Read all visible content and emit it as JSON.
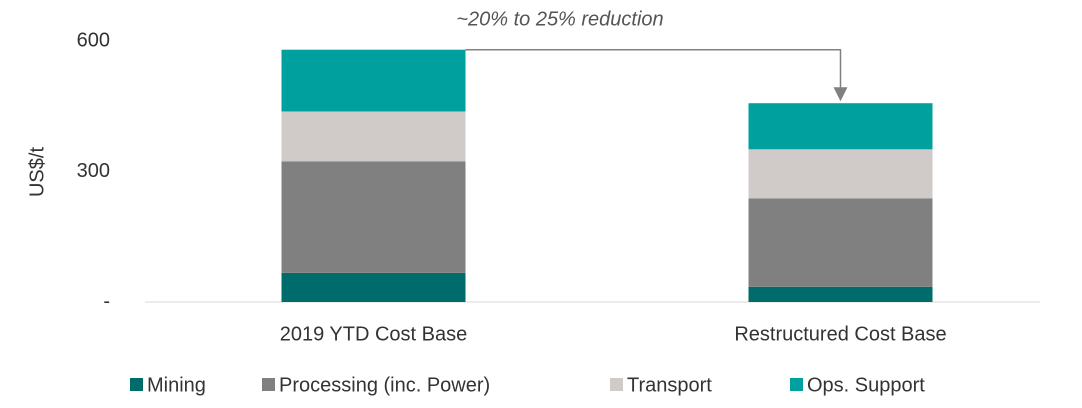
{
  "chart_data": {
    "type": "stacked_bar",
    "annotation": "~20% to 25% reduction",
    "y_label": "US$/t",
    "categories": [
      "2019 YTD Cost Base",
      "Restructured Cost Base"
    ],
    "series": [
      {
        "name": "Mining",
        "color": "#006b6b",
        "values": [
          67,
          35
        ]
      },
      {
        "name": "Processing (inc. Power)",
        "color": "#808080",
        "values": [
          256,
          203
        ]
      },
      {
        "name": "Transport",
        "color": "#d0cbc8",
        "values": [
          115,
          113
        ]
      },
      {
        "name": "Ops. Support",
        "color": "#00a09e",
        "values": [
          142,
          106
        ]
      }
    ],
    "ylim": [
      0,
      600
    ],
    "yticks": [
      {
        "value": 0,
        "label": "-"
      },
      300,
      600
    ],
    "legend": "bottom"
  }
}
